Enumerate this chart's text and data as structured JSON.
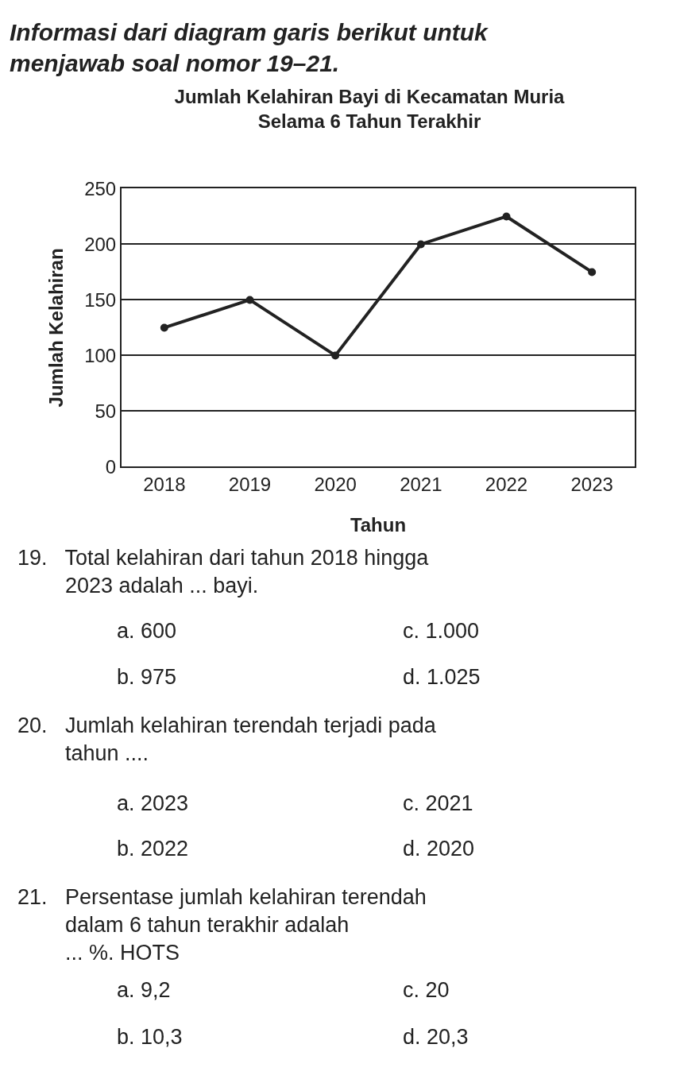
{
  "chart_data": {
    "type": "line",
    "title": "Jumlah Kelahiran Bayi di Kecamatan Muria\nSelama 6 Tahun Terakhir",
    "xlabel": "Tahun",
    "ylabel": "Jumlah Kelahiran",
    "categories": [
      "2018",
      "2019",
      "2020",
      "2021",
      "2022",
      "2023"
    ],
    "series": [
      {
        "color": "#222222",
        "values": [
          125,
          150,
          100,
          200,
          225,
          175
        ]
      }
    ],
    "ylim": [
      0,
      250
    ],
    "yticks": [
      0,
      50,
      100,
      150,
      200,
      250
    ],
    "grid": "y",
    "legend": false,
    "marker": "circle",
    "line_style": "solid",
    "annotations": [
      "Informasi dari diagram garis berikut untuk\nmenjawab soal nomor 19–21.",
      "19.   Total kelahiran dari tahun 2018 hingga\n        2023 adalah ... bayi.",
      "a. 600",
      "c. 1.000",
      "b. 975",
      "d. 1.025",
      "20.   Jumlah kelahiran terendah terjadi pada\n        tahun ....",
      "a. 2023",
      "c. 2021",
      "b. 2022",
      "d. 2020",
      "21.   Persentase jumlah kelahiran terendah\n        dalam 6 tahun terakhir adalah\n        ... %. HOTS",
      "a. 9,2",
      "c. 20",
      "b. 10,3",
      "d. 20,3"
    ]
  }
}
